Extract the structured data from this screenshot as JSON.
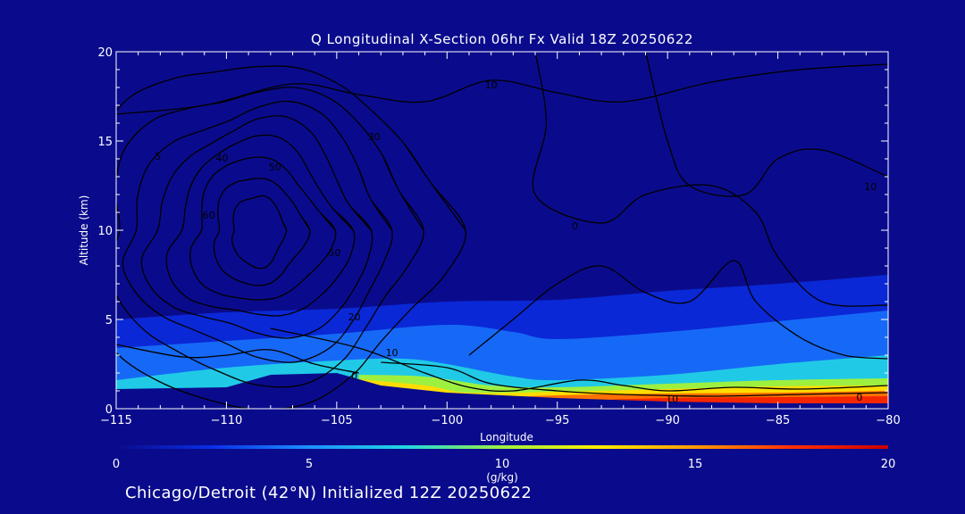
{
  "chart_data": {
    "type": "contour",
    "title": "Q Longitudinal X-Section 06hr  Fx Valid 18Z 20250622",
    "xlabel": "Longitude",
    "ylabel": "Altitude (km)",
    "xlim": [
      -115,
      -80
    ],
    "ylim": [
      0,
      20
    ],
    "x_ticks": [
      -115,
      -110,
      -105,
      -100,
      -95,
      -90,
      -85,
      -80
    ],
    "x_tick_labels": [
      "−115",
      "−110",
      "−105",
      "−100",
      "−95",
      "−90",
      "−85",
      "−80"
    ],
    "y_ticks": [
      0,
      5,
      10,
      15,
      20
    ],
    "y_tick_labels": [
      "0",
      "5",
      "10",
      "15",
      "20"
    ],
    "colorbar": {
      "label": "(g/kg)",
      "min": 0,
      "max": 20,
      "ticks": [
        0,
        5,
        10,
        15,
        20
      ],
      "tick_labels": [
        "0",
        "5",
        "10",
        "15",
        "20"
      ],
      "stops": [
        "#0a0b8c",
        "#0a2fe8",
        "#1e90ff",
        "#20d8e0",
        "#9ef040",
        "#ffee00",
        "#ff9a00",
        "#ff3000",
        "#c80000"
      ]
    },
    "terrain": [
      [
        -115,
        1.1
      ],
      [
        -110,
        1.2
      ],
      [
        -108,
        1.9
      ],
      [
        -105,
        2.0
      ],
      [
        -103,
        1.3
      ],
      [
        -100,
        0.9
      ],
      [
        -95,
        0.6
      ],
      [
        -90,
        0.4
      ],
      [
        -85,
        0.3
      ],
      [
        -80,
        0.3
      ]
    ],
    "moisture_bands": [
      {
        "q": 2,
        "top": [
          [
            -115,
            5.0
          ],
          [
            -110,
            5.4
          ],
          [
            -105,
            5.6
          ],
          [
            -100,
            6.0
          ],
          [
            -95,
            6.1
          ],
          [
            -90,
            6.6
          ],
          [
            -85,
            7.0
          ],
          [
            -80,
            7.5
          ]
        ]
      },
      {
        "q": 4,
        "top": [
          [
            -115,
            3.4
          ],
          [
            -110,
            3.8
          ],
          [
            -105,
            4.2
          ],
          [
            -100,
            4.7
          ],
          [
            -97,
            4.3
          ],
          [
            -95,
            3.9
          ],
          [
            -90,
            4.3
          ],
          [
            -85,
            4.9
          ],
          [
            -80,
            5.5
          ]
        ]
      },
      {
        "q": 7,
        "top": [
          [
            -115,
            1.6
          ],
          [
            -110,
            2.3
          ],
          [
            -105,
            2.7
          ],
          [
            -102,
            2.8
          ],
          [
            -100,
            2.5
          ],
          [
            -97,
            1.8
          ],
          [
            -95,
            1.6
          ],
          [
            -90,
            1.9
          ],
          [
            -85,
            2.5
          ],
          [
            -80,
            3.0
          ]
        ]
      },
      {
        "q": 10,
        "top": [
          [
            -104,
            1.9
          ],
          [
            -101,
            1.8
          ],
          [
            -98,
            1.3
          ],
          [
            -95,
            1.2
          ],
          [
            -90,
            1.4
          ],
          [
            -85,
            1.6
          ],
          [
            -80,
            1.7
          ]
        ]
      },
      {
        "q": 13,
        "top": [
          [
            -104,
            1.65
          ],
          [
            -101,
            1.3
          ],
          [
            -99,
            0.9
          ],
          [
            -95,
            0.95
          ],
          [
            -90,
            1.1
          ],
          [
            -85,
            1.25
          ],
          [
            -80,
            1.3
          ]
        ]
      },
      {
        "q": 16,
        "top": [
          [
            -99,
            0.55
          ],
          [
            -95,
            0.75
          ],
          [
            -90,
            0.85
          ],
          [
            -85,
            0.9
          ],
          [
            -80,
            1.0
          ]
        ]
      },
      {
        "q": 18,
        "top": [
          [
            -95,
            0.4
          ],
          [
            -90,
            0.6
          ],
          [
            -85,
            0.65
          ],
          [
            -80,
            0.7
          ]
        ]
      }
    ],
    "contour_labels": [
      {
        "text": "10",
        "x": -98.0,
        "y": 18.1
      },
      {
        "text": "30",
        "x": -103.3,
        "y": 15.2
      },
      {
        "text": "5",
        "x": -113.1,
        "y": 14.1
      },
      {
        "text": "40",
        "x": -110.2,
        "y": 14.0
      },
      {
        "text": "50",
        "x": -107.8,
        "y": 13.5
      },
      {
        "text": "60",
        "x": -110.8,
        "y": 10.8
      },
      {
        "text": "0",
        "x": -94.2,
        "y": 10.2
      },
      {
        "text": "50",
        "x": -105.1,
        "y": 8.7
      },
      {
        "text": "20",
        "x": -104.2,
        "y": 5.1
      },
      {
        "text": "10",
        "x": -102.5,
        "y": 3.1
      },
      {
        "text": "0",
        "x": -104.2,
        "y": 1.8
      },
      {
        "text": "10",
        "x": -89.8,
        "y": 0.5
      },
      {
        "text": "0",
        "x": -81.3,
        "y": 0.6
      },
      {
        "text": "10",
        "x": -80.8,
        "y": 12.4
      }
    ]
  },
  "footer": {
    "text": "Chicago/Detroit (42°N) Initialized 12Z 20250622"
  }
}
